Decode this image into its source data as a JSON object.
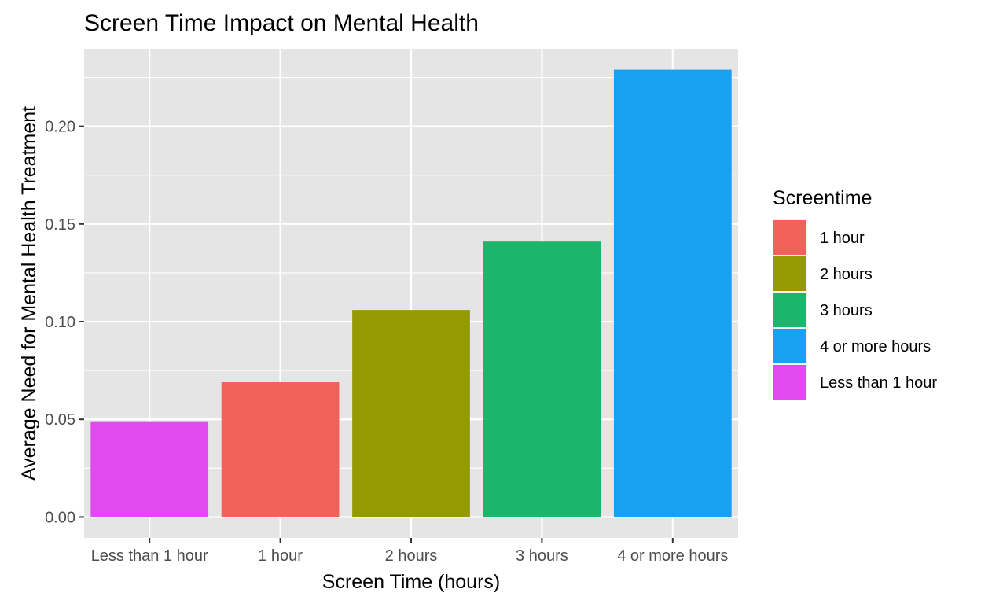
{
  "chart_data": {
    "type": "bar",
    "title": "Screen Time Impact on Mental Health",
    "xlabel": "Screen Time (hours)",
    "ylabel": "Average Need for Mental Health Treatment",
    "categories": [
      "Less than 1 hour",
      "1 hour",
      "2 hours",
      "3 hours",
      "4 or more hours"
    ],
    "values": [
      0.049,
      0.069,
      0.106,
      0.141,
      0.229
    ],
    "bar_colors": [
      "#E04BF0",
      "#F2615A",
      "#949A03",
      "#1BB56B",
      "#18A0F1"
    ],
    "ylim": [
      -0.0107,
      0.2397
    ],
    "yticks": [
      0.0,
      0.05,
      0.1,
      0.15,
      0.2
    ],
    "ytick_labels": [
      "0.00",
      "0.05",
      "0.10",
      "0.15",
      "0.20"
    ],
    "grid": true,
    "legend": {
      "title": "Screentime",
      "placement": "right",
      "entries": [
        {
          "label": "1 hour",
          "color": "#F2615A"
        },
        {
          "label": "2 hours",
          "color": "#949A03"
        },
        {
          "label": "3 hours",
          "color": "#1BB56B"
        },
        {
          "label": "4 or more hours",
          "color": "#18A0F1"
        },
        {
          "label": "Less than 1 hour",
          "color": "#E04BF0"
        }
      ]
    },
    "panel_background": "#E5E5E5",
    "grid_color": "#FFFFFF"
  }
}
